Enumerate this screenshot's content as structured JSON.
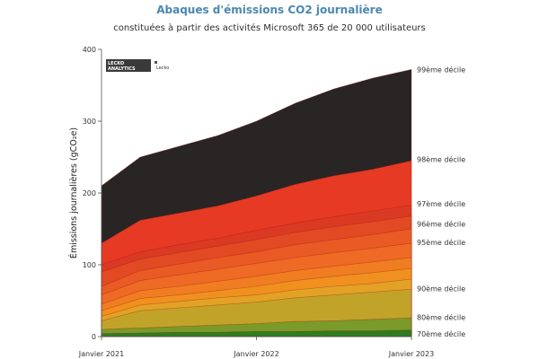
{
  "chart_data": {
    "type": "area",
    "title": "Abaques d'émissions CO2 journalière",
    "subtitle": "constituées à partir des activités Microsoft 365 de 20 000 utilisateurs",
    "ylabel": "Émissions journalières (gCO₂e)",
    "xlabel": "",
    "x": [
      "Janvier 2021",
      "",
      "",
      "",
      "Janvier 2022",
      "",
      "",
      "",
      "Janvier 2023"
    ],
    "xticks": [
      "Janvier 2021",
      "Janvier 2022",
      "Janvier 2023"
    ],
    "yticks": [
      0,
      100,
      200,
      300,
      400
    ],
    "ylim": [
      0,
      400
    ],
    "grid": false,
    "legend": "none",
    "series": [
      {
        "name": "70ème décile",
        "color": "#2e7d1e",
        "values": [
          4,
          5,
          6,
          6,
          7,
          7,
          8,
          8,
          9
        ]
      },
      {
        "name": "80ème décile",
        "color": "#7a9a2a",
        "values": [
          10,
          12,
          14,
          16,
          18,
          21,
          22,
          24,
          26
        ]
      },
      {
        "name": "",
        "color": "#c2a32a",
        "values": [
          22,
          36,
          40,
          44,
          48,
          54,
          58,
          62,
          66
        ]
      },
      {
        "name": "90ème décile",
        "color": "#e2a226",
        "values": [
          28,
          44,
          49,
          54,
          58,
          65,
          70,
          74,
          80
        ]
      },
      {
        "name": "",
        "color": "#f0901f",
        "values": [
          36,
          53,
          58,
          64,
          70,
          78,
          84,
          89,
          95
        ]
      },
      {
        "name": "",
        "color": "#f07d22",
        "values": [
          45,
          64,
          70,
          77,
          84,
          92,
          98,
          104,
          110
        ]
      },
      {
        "name": "",
        "color": "#ee6a25",
        "values": [
          58,
          78,
          86,
          94,
          102,
          110,
          117,
          123,
          130
        ]
      },
      {
        "name": "95ème décile",
        "color": "#e95a25",
        "values": [
          70,
          92,
          101,
          110,
          118,
          128,
          135,
          142,
          150
        ]
      },
      {
        "name": "96ème décile",
        "color": "#e24a24",
        "values": [
          90,
          108,
          117,
          126,
          135,
          145,
          153,
          160,
          168
        ]
      },
      {
        "name": "97ème décile",
        "color": "#da3a23",
        "values": [
          100,
          118,
          128,
          137,
          148,
          158,
          167,
          175,
          183
        ]
      },
      {
        "name": "98ème décile",
        "color": "#e63a24",
        "values": [
          130,
          162,
          172,
          182,
          196,
          212,
          224,
          233,
          245
        ]
      },
      {
        "name": "99ème décile",
        "color": "#2a2525",
        "values": [
          210,
          250,
          265,
          280,
          300,
          325,
          345,
          360,
          372
        ]
      }
    ],
    "decile_labels": [
      {
        "text": "99ème décile",
        "value": 372
      },
      {
        "text": "98ème décile",
        "value": 247
      },
      {
        "text": "97ème décile",
        "value": 185
      },
      {
        "text": "96ème décile",
        "value": 157
      },
      {
        "text": "95ème décile",
        "value": 131
      },
      {
        "text": "90ème décile",
        "value": 67
      },
      {
        "text": "80ème décile",
        "value": 27
      },
      {
        "text": "70ème décile",
        "value": 4
      }
    ]
  },
  "logo": {
    "line1": "LECKO",
    "line2": "ANALYTICS",
    "side": "Lecko"
  }
}
